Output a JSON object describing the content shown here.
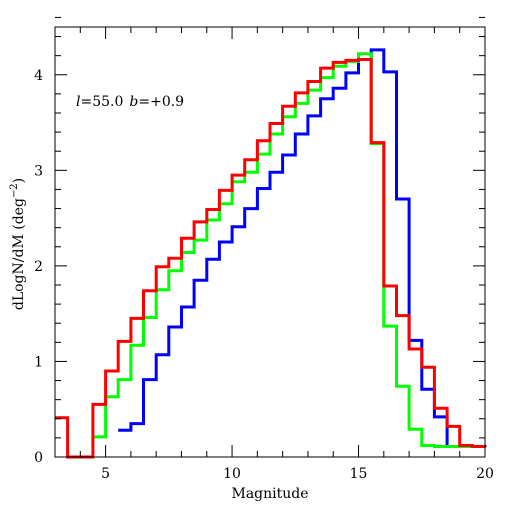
{
  "chart_data": {
    "type": "line",
    "drawstyle": "steps",
    "annotation": {
      "l_symbol": "l",
      "l_value": "=55.0",
      "b_symbol": "b",
      "b_value": "=+0.9"
    },
    "xlabel": "Magnitude",
    "ylabel": {
      "main": "dLogN/dM (deg",
      "exp": "−2",
      "close": ")"
    },
    "xlim": [
      3,
      20
    ],
    "ylim": [
      0,
      4.5
    ],
    "xticks": [
      5,
      10,
      15,
      20
    ],
    "xtick_labels": [
      "5",
      "10",
      "15",
      "20"
    ],
    "yticks": [
      0,
      1,
      2,
      3,
      4
    ],
    "ytick_labels": [
      "0",
      "1",
      "2",
      "3",
      "4"
    ],
    "x_minor_step": 1,
    "y_minor_step": 0.2,
    "grid": false,
    "legend": false,
    "bin_width": 0.5,
    "series": [
      {
        "color": "#0000ff",
        "x": [
          5.5,
          6.0,
          6.5,
          7.0,
          7.5,
          8.0,
          8.5,
          9.0,
          9.5,
          10.0,
          10.5,
          11.0,
          11.5,
          12.0,
          12.5,
          13.0,
          13.5,
          14.0,
          14.5,
          15.0,
          15.5,
          16.0,
          16.5,
          17.0,
          17.5,
          18.0,
          18.5,
          19.0,
          19.5,
          20.0
        ],
        "values": [
          0.28,
          0.35,
          0.81,
          1.07,
          1.36,
          1.57,
          1.85,
          2.07,
          2.25,
          2.41,
          2.6,
          2.81,
          2.98,
          3.16,
          3.38,
          3.57,
          3.75,
          3.86,
          4.02,
          4.16,
          4.26,
          4.03,
          2.7,
          1.22,
          0.71,
          0.42,
          0.11,
          0.11,
          0.11,
          0.1
        ]
      },
      {
        "color": "#00ff00",
        "x": [
          4.5,
          5.0,
          5.5,
          6.0,
          6.5,
          7.0,
          7.5,
          8.0,
          8.5,
          9.0,
          9.5,
          10.0,
          10.5,
          11.0,
          11.5,
          12.0,
          12.5,
          13.0,
          13.5,
          14.0,
          14.5,
          15.0,
          15.5,
          16.0,
          16.5,
          17.0,
          17.5,
          18.0,
          18.5,
          19.0
        ],
        "values": [
          0.21,
          0.63,
          0.81,
          1.17,
          1.46,
          1.75,
          1.95,
          2.14,
          2.27,
          2.48,
          2.65,
          2.88,
          2.98,
          3.17,
          3.38,
          3.56,
          3.7,
          3.84,
          3.97,
          4.09,
          4.14,
          4.22,
          3.28,
          1.37,
          0.74,
          0.29,
          0.12,
          0.11,
          0.11,
          0.11
        ]
      },
      {
        "color": "#ff0000",
        "x": [
          3.0,
          3.5,
          4.0,
          4.5,
          5.0,
          5.5,
          6.0,
          6.5,
          7.0,
          7.5,
          8.0,
          8.5,
          9.0,
          9.5,
          10.0,
          10.5,
          11.0,
          11.5,
          12.0,
          12.5,
          13.0,
          13.5,
          14.0,
          14.5,
          15.0,
          15.5,
          16.0,
          16.5,
          17.0,
          17.5,
          18.0,
          18.5,
          19.0,
          19.5
        ],
        "values": [
          0.41,
          0.0,
          0.0,
          0.55,
          0.9,
          1.21,
          1.45,
          1.74,
          1.99,
          2.08,
          2.29,
          2.46,
          2.59,
          2.79,
          2.95,
          3.11,
          3.31,
          3.49,
          3.67,
          3.81,
          3.93,
          4.07,
          4.13,
          4.15,
          4.16,
          3.29,
          1.79,
          1.48,
          1.13,
          0.94,
          0.51,
          0.32,
          0.12,
          0.11
        ]
      }
    ]
  }
}
